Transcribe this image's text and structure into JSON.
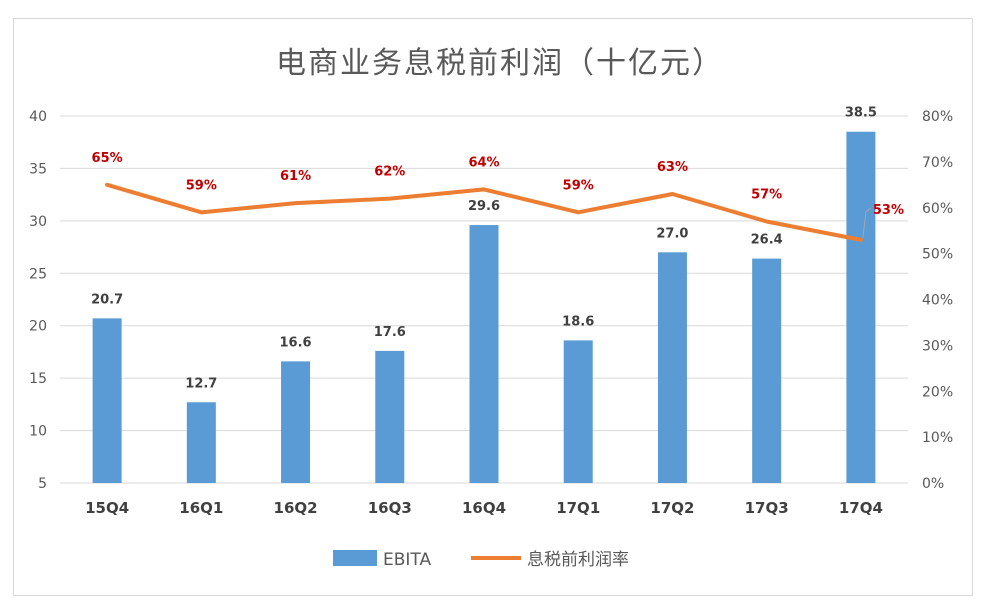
{
  "chart_data": {
    "type": "bar+line",
    "title": "电商业务息税前利润（十亿元）",
    "categories": [
      "15Q4",
      "16Q1",
      "16Q2",
      "16Q3",
      "16Q4",
      "17Q1",
      "17Q2",
      "17Q3",
      "17Q4"
    ],
    "series": [
      {
        "name": "EBITA",
        "type": "bar",
        "axis": "left",
        "color": "#5b9bd5",
        "values": [
          20.7,
          12.7,
          16.6,
          17.6,
          29.6,
          18.6,
          27.0,
          26.4,
          38.5
        ],
        "labels": [
          "20.7",
          "12.7",
          "16.6",
          "17.6",
          "29.6",
          "18.6",
          "27.0",
          "26.4",
          "38.5"
        ]
      },
      {
        "name": "息税前利润率",
        "type": "line",
        "axis": "right",
        "color": "#ed7d31",
        "values": [
          65,
          59,
          61,
          62,
          64,
          59,
          63,
          57,
          53
        ],
        "labels": [
          "65%",
          "59%",
          "61%",
          "62%",
          "64%",
          "59%",
          "63%",
          "57%",
          "53%"
        ]
      }
    ],
    "y_left": {
      "min": 5,
      "max": 40,
      "ticks": [
        "5",
        "10",
        "15",
        "20",
        "25",
        "30",
        "35",
        "40"
      ]
    },
    "y_right": {
      "min": 0,
      "max": 80,
      "ticks": [
        "0%",
        "10%",
        "20%",
        "30%",
        "40%",
        "50%",
        "60%",
        "70%",
        "80%"
      ]
    },
    "grid": true,
    "legend_position": "bottom"
  }
}
